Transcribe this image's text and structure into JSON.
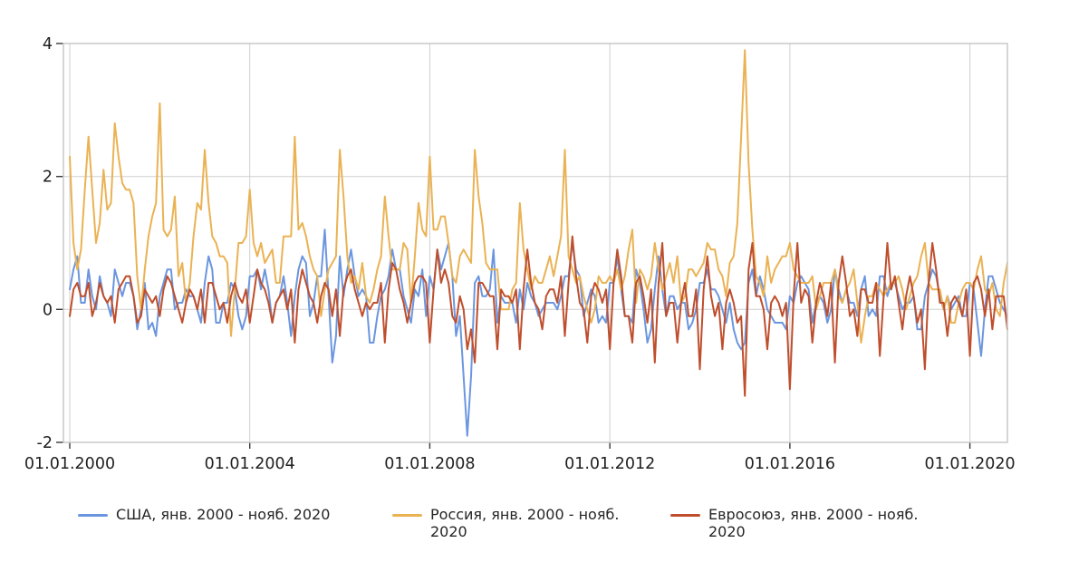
{
  "colors": {
    "background": "#ffffff",
    "gridline": "#cfcfcf",
    "plot_border": "#c9c9c9",
    "tick": "#3a3a3a",
    "axis_text": "#1f1f1f",
    "legend_text": "#252525"
  },
  "chart_data": {
    "type": "line",
    "title": "",
    "x_unit": "month",
    "x_start_label": "янв. 2000",
    "x_end_label": "нояб. 2020",
    "x_tick_labels": [
      "01.01.2000",
      "01.01.2004",
      "01.01.2008",
      "01.01.2012",
      "01.01.2016",
      "01.01.2020"
    ],
    "x_tick_month_index": [
      0,
      48,
      96,
      144,
      192,
      240
    ],
    "ylim": [
      -2,
      4
    ],
    "y_ticks": [
      4,
      2,
      0,
      -2
    ],
    "y_gridlines": [
      0,
      2
    ],
    "grid": "on",
    "legend_position": "bottom",
    "series": [
      {
        "id": "usa",
        "name": "США, янв. 2000 - нояб. 2020",
        "color": "#6b96df",
        "values": [
          0.3,
          0.6,
          0.8,
          0.1,
          0.1,
          0.6,
          0.2,
          0.0,
          0.5,
          0.2,
          0.1,
          -0.1,
          0.6,
          0.4,
          0.2,
          0.4,
          0.4,
          0.2,
          -0.3,
          0.0,
          0.4,
          -0.3,
          -0.2,
          -0.4,
          0.2,
          0.4,
          0.6,
          0.6,
          0.0,
          0.1,
          0.1,
          0.3,
          0.2,
          0.2,
          0.0,
          -0.2,
          0.4,
          0.8,
          0.6,
          -0.2,
          -0.2,
          0.1,
          0.1,
          0.4,
          0.3,
          -0.1,
          -0.3,
          -0.1,
          0.5,
          0.5,
          0.6,
          0.3,
          0.6,
          0.3,
          -0.2,
          0.1,
          0.2,
          0.5,
          0.1,
          -0.4,
          0.2,
          0.6,
          0.8,
          0.7,
          -0.1,
          0.1,
          0.5,
          0.5,
          1.2,
          0.2,
          -0.8,
          -0.4,
          0.8,
          0.2,
          0.6,
          0.9,
          0.5,
          0.2,
          0.3,
          0.2,
          -0.5,
          -0.5,
          -0.1,
          0.2,
          0.3,
          0.5,
          0.9,
          0.6,
          0.6,
          0.2,
          0.0,
          -0.2,
          0.3,
          0.2,
          0.6,
          -0.1,
          0.5,
          0.3,
          0.9,
          0.6,
          0.8,
          1.0,
          0.5,
          -0.4,
          -0.1,
          -1.0,
          -1.9,
          -1.0,
          0.4,
          0.5,
          0.2,
          0.2,
          0.3,
          0.9,
          -0.2,
          0.2,
          0.1,
          0.1,
          0.1,
          -0.2,
          0.3,
          0.0,
          0.4,
          0.2,
          0.1,
          -0.1,
          0.0,
          0.1,
          0.1,
          0.1,
          0.0,
          0.2,
          0.5,
          0.5,
          1.0,
          0.6,
          0.5,
          -0.1,
          0.1,
          0.3,
          0.2,
          -0.2,
          -0.1,
          -0.2,
          0.4,
          0.4,
          0.8,
          0.3,
          -0.1,
          -0.1,
          -0.2,
          0.6,
          0.4,
          0.0,
          -0.5,
          -0.3,
          0.3,
          0.8,
          0.3,
          -0.1,
          0.2,
          0.2,
          0.0,
          0.1,
          0.1,
          -0.3,
          -0.2,
          0.0,
          0.4,
          0.4,
          0.6,
          0.3,
          0.3,
          0.2,
          0.0,
          -0.2,
          0.1,
          -0.3,
          -0.5,
          -0.6,
          -0.5,
          0.4,
          0.6,
          0.2,
          0.5,
          0.3,
          0.0,
          -0.1,
          -0.2,
          -0.2,
          -0.2,
          -0.3,
          0.2,
          0.1,
          0.4,
          0.5,
          0.4,
          0.3,
          -0.2,
          0.1,
          0.2,
          0.1,
          -0.2,
          0.0,
          0.6,
          0.3,
          0.1,
          0.3,
          0.1,
          0.1,
          -0.1,
          0.3,
          0.5,
          -0.1,
          0.0,
          -0.1,
          0.5,
          0.5,
          0.2,
          0.4,
          0.4,
          0.2,
          0.0,
          0.1,
          0.1,
          0.2,
          -0.3,
          -0.3,
          0.2,
          0.4,
          0.6,
          0.5,
          0.2,
          0.0,
          0.2,
          0.0,
          0.1,
          0.2,
          -0.1,
          -0.1,
          0.4,
          0.3,
          -0.2,
          -0.7,
          0.0,
          0.5,
          0.5,
          0.3,
          0.1,
          0.0,
          -0.1
        ]
      },
      {
        "id": "russia",
        "name": "Россия, янв. 2000 - нояб. 2020",
        "color": "#eab253",
        "values": [
          2.3,
          1.0,
          0.6,
          0.9,
          1.8,
          2.6,
          1.8,
          1.0,
          1.3,
          2.1,
          1.5,
          1.6,
          2.8,
          2.3,
          1.9,
          1.8,
          1.8,
          1.6,
          0.5,
          0.0,
          0.6,
          1.1,
          1.4,
          1.6,
          3.1,
          1.2,
          1.1,
          1.2,
          1.7,
          0.5,
          0.7,
          0.1,
          0.4,
          1.1,
          1.6,
          1.5,
          2.4,
          1.6,
          1.1,
          1.0,
          0.8,
          0.8,
          0.7,
          -0.4,
          0.3,
          1.0,
          1.0,
          1.1,
          1.8,
          1.0,
          0.8,
          1.0,
          0.7,
          0.8,
          0.9,
          0.4,
          0.4,
          1.1,
          1.1,
          1.1,
          2.6,
          1.2,
          1.3,
          1.1,
          0.8,
          0.6,
          0.5,
          -0.1,
          0.3,
          0.6,
          0.7,
          0.8,
          2.4,
          1.7,
          0.8,
          0.4,
          0.5,
          0.3,
          0.7,
          0.2,
          0.1,
          0.3,
          0.6,
          0.8,
          1.7,
          1.1,
          0.6,
          0.6,
          0.6,
          1.0,
          0.9,
          0.1,
          0.8,
          1.6,
          1.2,
          1.1,
          2.3,
          1.2,
          1.2,
          1.4,
          1.4,
          1.0,
          0.5,
          0.4,
          0.8,
          0.9,
          0.8,
          0.7,
          2.4,
          1.7,
          1.3,
          0.7,
          0.6,
          0.6,
          0.6,
          0.0,
          0.0,
          0.0,
          0.3,
          0.4,
          1.6,
          0.9,
          0.6,
          0.3,
          0.5,
          0.4,
          0.4,
          0.6,
          0.8,
          0.5,
          0.8,
          1.1,
          2.4,
          0.8,
          0.6,
          0.4,
          0.5,
          0.2,
          0.0,
          -0.2,
          0.0,
          0.5,
          0.4,
          0.4,
          0.5,
          0.4,
          0.6,
          0.3,
          0.5,
          0.9,
          1.2,
          0.1,
          0.6,
          0.5,
          0.3,
          0.5,
          1.0,
          0.6,
          0.3,
          0.5,
          0.7,
          0.4,
          0.8,
          0.1,
          0.2,
          0.6,
          0.6,
          0.5,
          0.6,
          0.7,
          1.0,
          0.9,
          0.9,
          0.6,
          0.5,
          0.2,
          0.7,
          0.8,
          1.3,
          2.6,
          3.9,
          2.2,
          1.2,
          0.5,
          0.4,
          0.2,
          0.8,
          0.4,
          0.6,
          0.7,
          0.8,
          0.8,
          1.0,
          0.6,
          0.5,
          0.4,
          0.4,
          0.4,
          0.5,
          0.0,
          0.2,
          0.4,
          0.4,
          0.4,
          0.6,
          0.2,
          0.1,
          0.3,
          0.4,
          0.6,
          0.1,
          -0.5,
          -0.1,
          0.2,
          0.2,
          0.4,
          0.3,
          0.2,
          0.3,
          0.4,
          0.4,
          0.5,
          0.3,
          0.0,
          0.2,
          0.4,
          0.5,
          0.8,
          1.0,
          0.4,
          0.3,
          0.3,
          0.3,
          0.0,
          0.2,
          -0.2,
          -0.2,
          0.1,
          0.3,
          0.4,
          0.4,
          0.3,
          0.6,
          0.8,
          0.3,
          0.2,
          0.4,
          0.0,
          -0.1,
          0.4,
          0.7
        ]
      },
      {
        "id": "eu",
        "name": "Евросоюз, янв. 2000 - нояб. 2020",
        "color": "#bf4e2c",
        "values": [
          -0.1,
          0.3,
          0.4,
          0.2,
          0.2,
          0.4,
          -0.1,
          0.1,
          0.4,
          0.2,
          0.1,
          0.2,
          -0.2,
          0.3,
          0.4,
          0.5,
          0.5,
          0.2,
          -0.2,
          -0.1,
          0.3,
          0.2,
          0.1,
          0.2,
          -0.1,
          0.3,
          0.5,
          0.4,
          0.2,
          0.0,
          -0.2,
          0.1,
          0.3,
          0.2,
          0.0,
          0.3,
          -0.2,
          0.4,
          0.4,
          0.2,
          0.0,
          0.1,
          -0.2,
          0.2,
          0.4,
          0.2,
          0.1,
          0.3,
          -0.2,
          0.2,
          0.6,
          0.4,
          0.3,
          0.1,
          -0.2,
          0.1,
          0.2,
          0.3,
          0.0,
          0.3,
          -0.5,
          0.3,
          0.6,
          0.4,
          0.2,
          0.1,
          -0.2,
          0.2,
          0.4,
          0.3,
          -0.1,
          0.3,
          -0.4,
          0.3,
          0.5,
          0.6,
          0.3,
          0.1,
          -0.1,
          0.1,
          0.0,
          0.1,
          0.1,
          0.4,
          -0.5,
          0.3,
          0.7,
          0.6,
          0.3,
          0.1,
          -0.2,
          0.1,
          0.4,
          0.5,
          0.5,
          0.4,
          -0.5,
          0.3,
          0.9,
          0.4,
          0.6,
          0.4,
          -0.1,
          -0.2,
          0.2,
          0.0,
          -0.6,
          -0.3,
          -0.8,
          0.4,
          0.4,
          0.3,
          0.2,
          0.2,
          -0.6,
          0.3,
          0.2,
          0.2,
          0.1,
          0.3,
          -0.6,
          0.3,
          0.9,
          0.4,
          0.1,
          0.0,
          -0.3,
          0.2,
          0.3,
          0.3,
          0.1,
          0.5,
          -0.4,
          0.4,
          1.1,
          0.5,
          0.1,
          0.0,
          -0.5,
          0.2,
          0.4,
          0.3,
          0.1,
          0.3,
          -0.6,
          0.4,
          0.9,
          0.5,
          -0.1,
          -0.1,
          -0.5,
          0.4,
          0.5,
          0.2,
          -0.2,
          0.3,
          -0.8,
          0.4,
          1.0,
          -0.1,
          0.1,
          0.1,
          -0.5,
          0.1,
          0.4,
          -0.1,
          -0.1,
          0.3,
          -0.9,
          0.3,
          0.8,
          0.2,
          -0.1,
          0.1,
          -0.6,
          0.1,
          0.3,
          0.1,
          -0.2,
          -0.1,
          -1.3,
          0.6,
          1.0,
          0.2,
          0.2,
          0.0,
          -0.6,
          0.1,
          0.2,
          0.1,
          -0.1,
          0.1,
          -1.2,
          0.2,
          1.0,
          0.1,
          0.3,
          0.2,
          -0.5,
          0.1,
          0.4,
          0.2,
          -0.1,
          0.4,
          -0.8,
          0.4,
          0.8,
          0.4,
          -0.1,
          0.0,
          -0.4,
          0.3,
          0.3,
          0.1,
          0.1,
          0.4,
          -0.7,
          0.2,
          1.0,
          0.3,
          0.5,
          0.1,
          -0.3,
          0.2,
          0.5,
          0.2,
          -0.2,
          0.0,
          -0.9,
          0.4,
          1.0,
          0.6,
          0.1,
          0.1,
          -0.4,
          0.1,
          0.2,
          0.1,
          -0.1,
          0.3,
          -0.7,
          0.4,
          0.5,
          0.3,
          -0.1,
          0.3,
          -0.3,
          0.2,
          0.2,
          0.2,
          -0.3
        ]
      }
    ]
  }
}
